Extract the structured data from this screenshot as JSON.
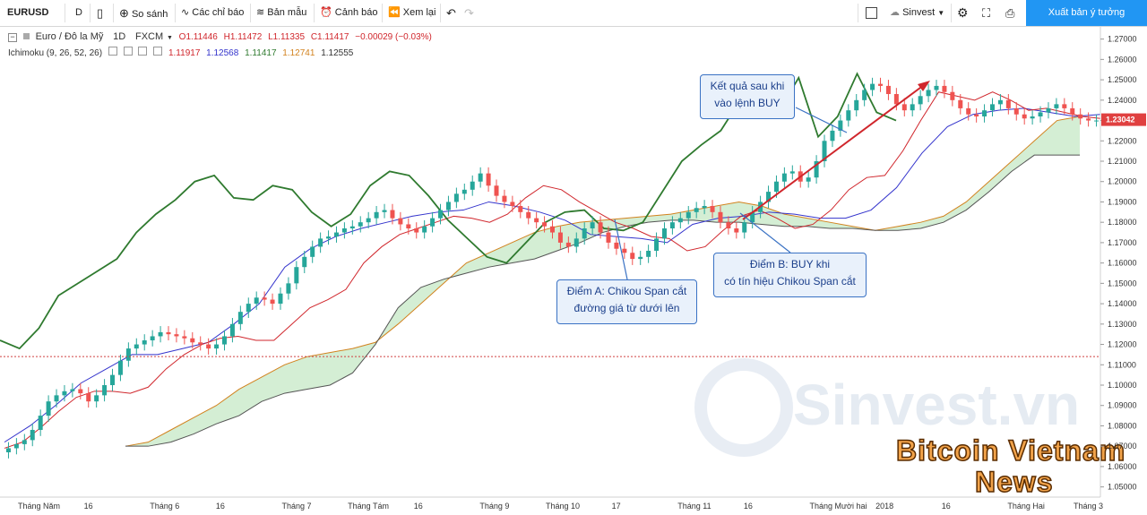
{
  "toolbar": {
    "symbol": "EURUSD",
    "interval": "D",
    "compare": "So sánh",
    "indicators": "Các chỉ báo",
    "templates": "Bản mẫu",
    "alert": "Cảnh báo",
    "replay": "Xem lại",
    "user": "Sinvest",
    "publish": "Xuất bản ý tưởng"
  },
  "legend": {
    "pair": "Euro / Đô la Mỹ",
    "tf": "1D",
    "source": "FXCM",
    "o": "O1.11446",
    "h": "H1.11472",
    "l": "L1.11335",
    "c": "C1.11417",
    "chg": "−0.00029 (−0.03%)",
    "ichi": "Ichimoku (9, 26, 52, 26)",
    "v1": "1.11917",
    "v2": "1.12568",
    "v3": "1.11417",
    "v4": "1.12741",
    "v5": "1.12555"
  },
  "callouts": {
    "result1": "Kết quả sau khi",
    "result2": "vào lệnh BUY",
    "a1": "Điểm A: Chikou Span cắt",
    "a2": "đường giá từ dưới lên",
    "b1": "Điểm B: BUY khi",
    "b2": "có tín hiệu Chikou Span cắt"
  },
  "watermark": {
    "site": "Sinvest.vn",
    "brand1": "Bitcoin Vietnam",
    "brand2": "News"
  },
  "colors": {
    "up": "#26a69a",
    "down": "#ef5350",
    "tenkan": "#d0262c",
    "kijun": "#3333cc",
    "chikou": "#2f7a2f",
    "spanA": "#b7e3b7",
    "spanB": "#f4c5c5",
    "accent": "#2962ff"
  },
  "chart_data": {
    "type": "candlestick",
    "title": "Euro / Đô la Mỹ, 1D, FXCM",
    "current_price": "1.23042",
    "y_ticks": [
      "1.27000",
      "1.26000",
      "1.25000",
      "1.24000",
      "1.23000",
      "1.22000",
      "1.21000",
      "1.20000",
      "1.19000",
      "1.18000",
      "1.17000",
      "1.16000",
      "1.15000",
      "1.14000",
      "1.13000",
      "1.12000",
      "1.11000",
      "1.10000",
      "1.09000",
      "1.08000",
      "1.07000",
      "1.06000",
      "1.05000"
    ],
    "ylim": [
      1.045,
      1.276
    ],
    "x_labels": [
      "Tháng Năm",
      "16",
      "Tháng 6",
      "16",
      "Tháng 7",
      "Tháng Tám",
      "16",
      "Tháng 9",
      "Tháng 10",
      "17",
      "Tháng 11",
      "16",
      "Tháng Mười hai",
      "2018",
      "16",
      "Tháng Hai",
      "Tháng 3"
    ],
    "close": [
      1.069,
      1.071,
      1.073,
      1.078,
      1.085,
      1.092,
      1.095,
      1.097,
      1.098,
      1.096,
      1.092,
      1.095,
      1.1,
      1.105,
      1.112,
      1.118,
      1.12,
      1.122,
      1.124,
      1.126,
      1.125,
      1.124,
      1.123,
      1.121,
      1.12,
      1.118,
      1.12,
      1.124,
      1.13,
      1.136,
      1.14,
      1.143,
      1.142,
      1.14,
      1.145,
      1.15,
      1.158,
      1.163,
      1.168,
      1.172,
      1.173,
      1.175,
      1.177,
      1.178,
      1.18,
      1.182,
      1.185,
      1.186,
      1.182,
      1.179,
      1.177,
      1.175,
      1.178,
      1.182,
      1.186,
      1.19,
      1.194,
      1.196,
      1.2,
      1.204,
      1.198,
      1.193,
      1.19,
      1.188,
      1.185,
      1.182,
      1.18,
      1.178,
      1.175,
      1.17,
      1.168,
      1.172,
      1.177,
      1.18,
      1.175,
      1.17,
      1.167,
      1.165,
      1.162,
      1.163,
      1.166,
      1.172,
      1.177,
      1.18,
      1.182,
      1.185,
      1.187,
      1.188,
      1.185,
      1.18,
      1.177,
      1.175,
      1.18,
      1.185,
      1.19,
      1.195,
      1.2,
      1.204,
      1.205,
      1.2,
      1.202,
      1.21,
      1.22,
      1.225,
      1.23,
      1.235,
      1.24,
      1.245,
      1.248,
      1.247,
      1.243,
      1.238,
      1.235,
      1.238,
      1.242,
      1.245,
      1.247,
      1.244,
      1.24,
      1.236,
      1.233,
      1.232,
      1.235,
      1.238,
      1.24,
      1.236,
      1.233,
      1.231,
      1.232,
      1.234,
      1.236,
      1.238,
      1.236,
      1.233,
      1.231,
      1.23,
      1.23
    ],
    "tenkan": [
      1.069,
      1.072,
      1.079,
      1.087,
      1.094,
      1.097,
      1.097,
      1.096,
      1.099,
      1.108,
      1.115,
      1.12,
      1.123,
      1.124,
      1.122,
      1.122,
      1.13,
      1.138,
      1.142,
      1.147,
      1.16,
      1.168,
      1.174,
      1.177,
      1.18,
      1.183,
      1.182,
      1.18,
      1.184,
      1.192,
      1.198,
      1.196,
      1.19,
      1.185,
      1.18,
      1.177,
      1.173,
      1.172,
      1.166,
      1.168,
      1.176,
      1.183,
      1.186,
      1.182,
      1.177,
      1.179,
      1.186,
      1.196,
      1.202,
      1.203,
      1.215,
      1.23,
      1.244,
      1.242,
      1.24,
      1.244,
      1.24,
      1.235,
      1.236,
      1.234,
      1.232,
      1.231
    ],
    "kijun": [
      1.072,
      1.08,
      1.09,
      1.101,
      1.108,
      1.115,
      1.115,
      1.118,
      1.121,
      1.13,
      1.14,
      1.158,
      1.167,
      1.173,
      1.177,
      1.18,
      1.183,
      1.185,
      1.186,
      1.19,
      1.188,
      1.185,
      1.181,
      1.174,
      1.173,
      1.172,
      1.17,
      1.179,
      1.182,
      1.183,
      1.185,
      1.184,
      1.182,
      1.182,
      1.186,
      1.197,
      1.214,
      1.227,
      1.233,
      1.235,
      1.236,
      1.234,
      1.232,
      1.233
    ],
    "chikou": [
      1.122,
      1.118,
      1.128,
      1.144,
      1.15,
      1.156,
      1.162,
      1.175,
      1.184,
      1.191,
      1.2,
      1.203,
      1.192,
      1.191,
      1.198,
      1.196,
      1.185,
      1.178,
      1.184,
      1.198,
      1.205,
      1.203,
      1.193,
      1.181,
      1.172,
      1.163,
      1.16,
      1.17,
      1.18,
      1.185,
      1.186,
      1.177,
      1.176,
      1.18,
      1.195,
      1.21,
      1.218,
      1.225,
      1.24,
      1.248,
      1.235,
      1.251,
      1.222,
      1.232,
      1.253,
      1.234,
      1.23
    ],
    "span_a": [
      1.07,
      1.072,
      1.078,
      1.084,
      1.09,
      1.098,
      1.104,
      1.11,
      1.114,
      1.116,
      1.118,
      1.121,
      1.13,
      1.14,
      1.15,
      1.16,
      1.165,
      1.17,
      1.175,
      1.178,
      1.18,
      1.181,
      1.182,
      1.183,
      1.184,
      1.186,
      1.188,
      1.19,
      1.188,
      1.184,
      1.182,
      1.18,
      1.178,
      1.176,
      1.178,
      1.18,
      1.183,
      1.19,
      1.2,
      1.21,
      1.22,
      1.23,
      1.232
    ],
    "span_b": [
      1.07,
      1.07,
      1.072,
      1.076,
      1.081,
      1.085,
      1.092,
      1.096,
      1.098,
      1.1,
      1.106,
      1.12,
      1.138,
      1.148,
      1.152,
      1.155,
      1.158,
      1.16,
      1.162,
      1.166,
      1.17,
      1.175,
      1.178,
      1.18,
      1.181,
      1.181,
      1.18,
      1.18,
      1.179,
      1.178,
      1.178,
      1.177,
      1.177,
      1.176,
      1.176,
      1.177,
      1.18,
      1.186,
      1.195,
      1.205,
      1.213,
      1.213,
      1.213
    ]
  }
}
